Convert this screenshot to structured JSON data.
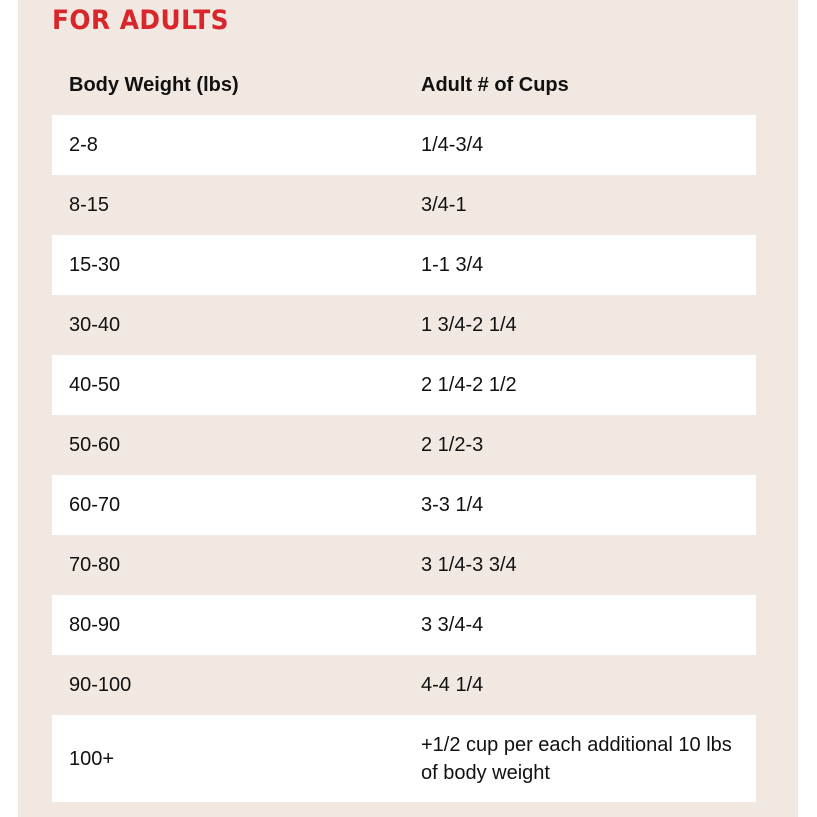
{
  "title": "FOR ADULTS",
  "table": {
    "headers": [
      "Body Weight (lbs)",
      "Adult # of Cups"
    ],
    "rows": [
      [
        "2-8",
        "1/4-3/4"
      ],
      [
        "8-15",
        "3/4-1"
      ],
      [
        "15-30",
        "1-1 3/4"
      ],
      [
        "30-40",
        "1 3/4-2 1/4"
      ],
      [
        "40-50",
        "2 1/4-2 1/2"
      ],
      [
        "50-60",
        "2 1/2-3"
      ],
      [
        "60-70",
        "3-3 1/4"
      ],
      [
        "70-80",
        "3 1/4-3 3/4"
      ],
      [
        "80-90",
        "3 3/4-4"
      ],
      [
        "90-100",
        "4-4 1/4"
      ],
      [
        "100+",
        "+1/2 cup per each additional 10 lbs of body weight"
      ]
    ]
  }
}
